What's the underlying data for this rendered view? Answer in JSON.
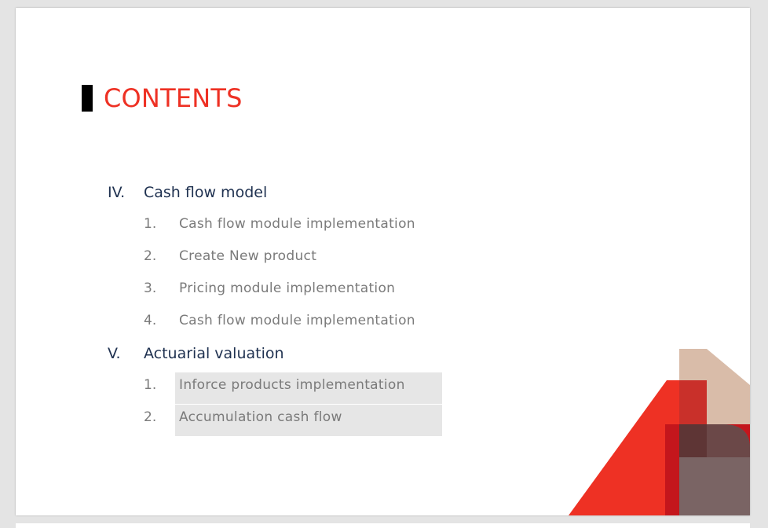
{
  "title": "CONTENTS",
  "sections": [
    {
      "number": "IV.",
      "label": "Cash flow model",
      "items": [
        {
          "number": "1.",
          "label": "Cash flow module implementation"
        },
        {
          "number": "2.",
          "label": "Create New product"
        },
        {
          "number": "3.",
          "label": "Pricing module implementation"
        },
        {
          "number": "4.",
          "label": "Cash flow module implementation"
        }
      ]
    },
    {
      "number": "V.",
      "label": "Actuarial valuation",
      "items": [
        {
          "number": "1.",
          "label": "Inforce products implementation"
        },
        {
          "number": "2.",
          "label": "Accumulation cash flow"
        }
      ]
    }
  ],
  "colors": {
    "accent": "#ee3124",
    "heading": "#1f3150",
    "item_text": "#7a7a7a",
    "highlight": "#e6e6e6"
  }
}
